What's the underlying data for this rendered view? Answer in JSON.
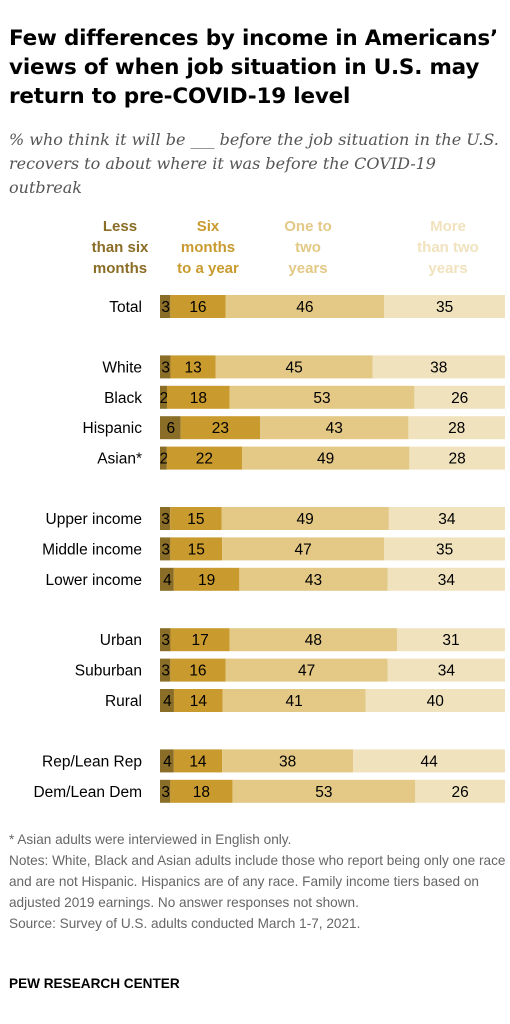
{
  "title": "Few differences by income in Americans’ views of when job situation in U.S. may return to pre-COVID-19 level",
  "subtitle": "% who think it will be ___ before the job situation in the U.S. recovers to about where it was before the COVID-19 outbreak",
  "notes": {
    "asterisk": "* Asian adults were interviewed in English only.",
    "notes": "Notes: White, Black and Asian adults include those who report being only one race and are not Hispanic. Hispanics are of any race. Family income tiers based on adjusted 2019 earnings. No answer responses not shown.",
    "source": "Source: Survey of U.S. adults conducted March 1-7, 2021."
  },
  "brand": "PEW RESEARCH CENTER",
  "colors": {
    "less_than_six_months": "#8a6d26",
    "six_months_to_a_year": "#c99a2e",
    "one_to_two_years": "#e3c886",
    "more_than_two_years": "#f0e2bd"
  },
  "chart_data": {
    "type": "bar",
    "orientation": "horizontal",
    "stacked": true,
    "xlim": [
      0,
      100
    ],
    "series": [
      {
        "name": "Less than six months",
        "lines": [
          "Less",
          "than six",
          "months"
        ],
        "color": "#8a6d26"
      },
      {
        "name": "Six months to a year",
        "lines": [
          "Six",
          "months",
          "to a year"
        ],
        "color": "#c99a2e"
      },
      {
        "name": "One to two years",
        "lines": [
          "One to",
          "two",
          "years"
        ],
        "color": "#e3c886"
      },
      {
        "name": "More than two years",
        "lines": [
          "More",
          "than two",
          "years"
        ],
        "color": "#f0e2bd"
      }
    ],
    "groups": [
      {
        "rows": [
          {
            "label": "Total",
            "values": [
              3,
              16,
              46,
              35
            ]
          }
        ]
      },
      {
        "rows": [
          {
            "label": "White",
            "values": [
              3,
              13,
              45,
              38
            ]
          },
          {
            "label": "Black",
            "values": [
              2,
              18,
              53,
              26
            ]
          },
          {
            "label": "Hispanic",
            "values": [
              6,
              23,
              43,
              28
            ]
          },
          {
            "label": "Asian*",
            "values": [
              2,
              22,
              49,
              28
            ]
          }
        ]
      },
      {
        "rows": [
          {
            "label": "Upper income",
            "values": [
              3,
              15,
              49,
              34
            ]
          },
          {
            "label": "Middle income",
            "values": [
              3,
              15,
              47,
              35
            ]
          },
          {
            "label": "Lower income",
            "values": [
              4,
              19,
              43,
              34
            ]
          }
        ]
      },
      {
        "rows": [
          {
            "label": "Urban",
            "values": [
              3,
              17,
              48,
              31
            ]
          },
          {
            "label": "Suburban",
            "values": [
              3,
              16,
              47,
              34
            ]
          },
          {
            "label": "Rural",
            "values": [
              4,
              14,
              41,
              40
            ]
          }
        ]
      },
      {
        "rows": [
          {
            "label": "Rep/Lean Rep",
            "values": [
              4,
              14,
              38,
              44
            ]
          },
          {
            "label": "Dem/Lean Dem",
            "values": [
              3,
              18,
              53,
              26
            ]
          }
        ]
      }
    ]
  }
}
